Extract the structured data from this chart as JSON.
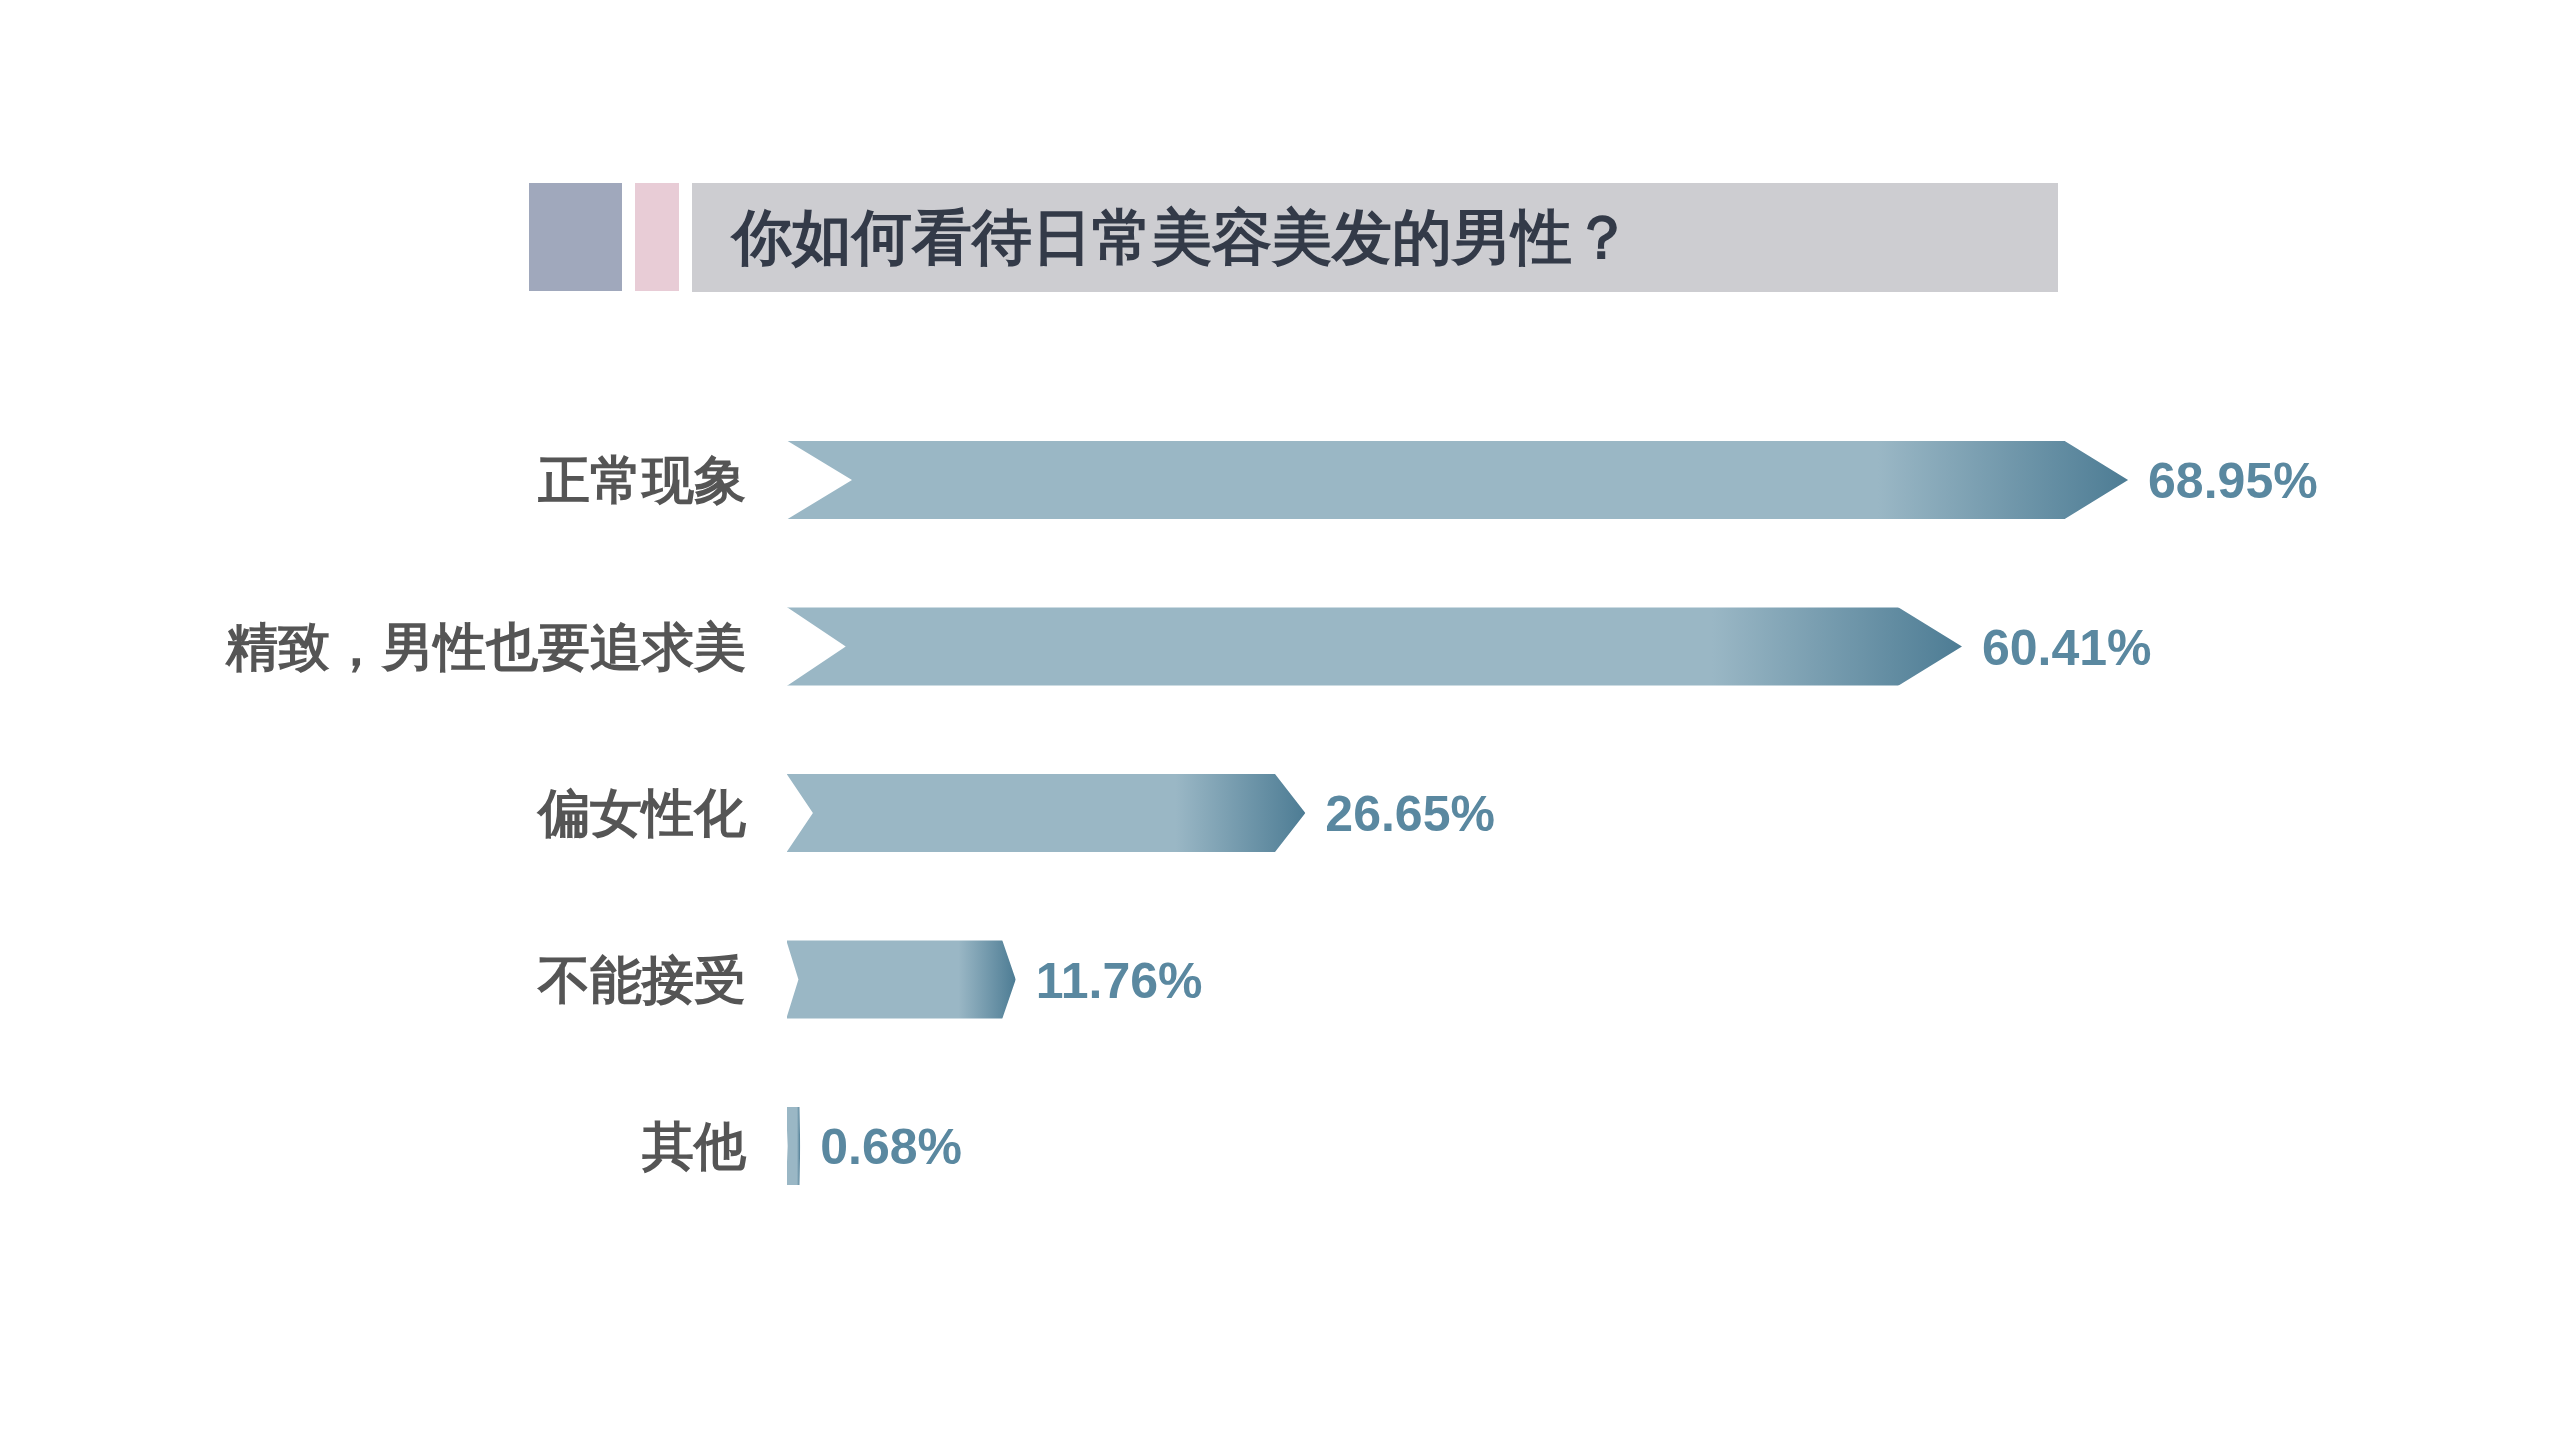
{
  "chart_data": {
    "type": "bar",
    "orientation": "horizontal",
    "title": "你如何看待日常美容美发的男性？",
    "categories": [
      "正常现象",
      "精致，男性也要追求美",
      "偏女性化",
      "不能接受",
      "其他"
    ],
    "values": [
      68.95,
      60.41,
      26.65,
      11.76,
      0.68
    ],
    "value_labels": [
      "68.95%",
      "60.41%",
      "26.65%",
      "11.76%",
      "0.68%"
    ],
    "color": "#9ab7c5"
  }
}
